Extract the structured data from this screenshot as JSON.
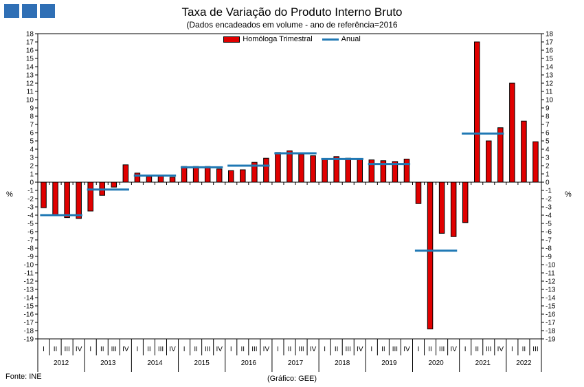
{
  "header": {
    "title": "Taxa de Variação do Produto Interno Bruto",
    "subtitle": "(Dados encadeados em volume  - ano de referência=2016"
  },
  "unit_left": "%",
  "unit_right": "%",
  "footer": {
    "source": "Fonte: INE",
    "credit": "(Gráfico: GEE)"
  },
  "colors": {
    "bar": "#e00000",
    "line": "#1f78b4",
    "logo": "#2f6fb5"
  },
  "chart_data": {
    "type": "bar",
    "title": "Taxa de Variação do Produto Interno Bruto",
    "subtitle": "(Dados encadeados em volume  - ano de referência=2016",
    "ylim": [
      -19,
      18
    ],
    "yticks": [
      18,
      17,
      16,
      15,
      14,
      13,
      12,
      11,
      10,
      9,
      8,
      7,
      6,
      5,
      4,
      3,
      2,
      1,
      0,
      -1,
      -2,
      -3,
      -4,
      -5,
      -6,
      -7,
      -8,
      -9,
      -10,
      -11,
      -12,
      -13,
      -14,
      -15,
      -16,
      -17,
      -18,
      -19
    ],
    "grid": false,
    "legend": "top-center",
    "years": [
      "2012",
      "2013",
      "2014",
      "2015",
      "2016",
      "2017",
      "2018",
      "2019",
      "2020",
      "2021",
      "2022"
    ],
    "quarters": [
      "I",
      "II",
      "III",
      "IV",
      "I",
      "II",
      "III",
      "IV",
      "I",
      "II",
      "III",
      "IV",
      "I",
      "II",
      "III",
      "IV",
      "I",
      "II",
      "III",
      "IV",
      "I",
      "II",
      "III",
      "IV",
      "I",
      "II",
      "III",
      "IV",
      "I",
      "II",
      "III",
      "IV",
      "I",
      "II",
      "III",
      "IV",
      "I",
      "II",
      "III",
      "IV",
      "I",
      "II",
      "III"
    ],
    "series": [
      {
        "name": "Homóloga Trimestral",
        "kind": "bar",
        "values": [
          -3.1,
          -4.0,
          -4.3,
          -4.4,
          -3.5,
          -1.6,
          -0.6,
          2.1,
          1.1,
          0.7,
          0.8,
          0.6,
          1.9,
          1.9,
          1.9,
          1.6,
          1.4,
          1.5,
          2.4,
          2.9,
          3.6,
          3.8,
          3.4,
          3.2,
          2.8,
          3.1,
          2.9,
          2.8,
          2.7,
          2.6,
          2.5,
          2.8,
          -2.6,
          -17.8,
          -6.2,
          -6.6,
          -4.9,
          17.0,
          5.0,
          6.6,
          12.0,
          7.4,
          4.9
        ]
      },
      {
        "name": "Anual",
        "kind": "line",
        "values": [
          -4.0,
          -0.9,
          0.8,
          1.8,
          2.0,
          3.5,
          2.8,
          2.2,
          -8.3,
          5.9
        ]
      }
    ]
  }
}
